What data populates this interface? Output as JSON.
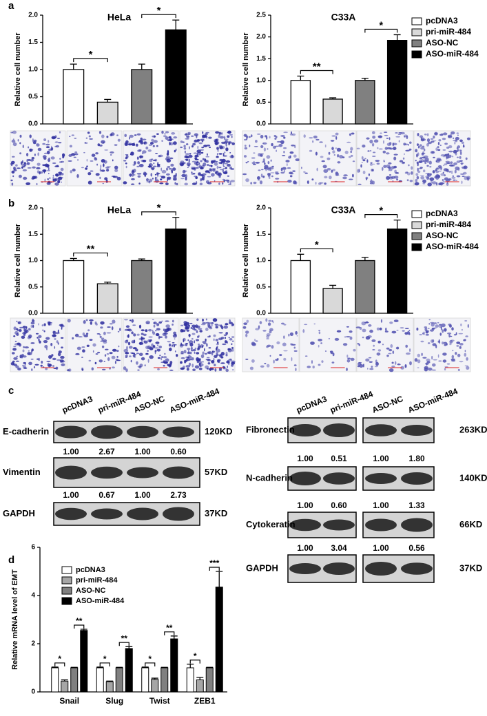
{
  "panel_labels": [
    "a",
    "b",
    "c",
    "d"
  ],
  "chart_data": [
    {
      "type": "bar",
      "title": "HeLa",
      "ylabel": "Relative cell number",
      "values": [
        1.0,
        0.4,
        1.0,
        1.73
      ],
      "errors": [
        0.1,
        0.05,
        0.1,
        0.18
      ],
      "colors": [
        "#ffffff",
        "#d9d9d9",
        "#808080",
        "#000000"
      ],
      "ylim": [
        0,
        2.0
      ],
      "yticks": [
        {
          "value": 0,
          "label": "0.0"
        },
        {
          "value": 0.5,
          "label": "0.5"
        },
        {
          "value": 1.0,
          "label": "1.0"
        },
        {
          "value": 1.5,
          "label": "1.5"
        },
        {
          "value": 2.0,
          "label": "2.0"
        }
      ],
      "annotations": [
        "*",
        "*"
      ]
    },
    {
      "type": "bar",
      "title": "C33A",
      "ylabel": "Relative cell number",
      "values": [
        1.0,
        0.57,
        1.0,
        1.92
      ],
      "errors": [
        0.1,
        0.03,
        0.05,
        0.13
      ],
      "colors": [
        "#ffffff",
        "#d9d9d9",
        "#808080",
        "#000000"
      ],
      "legend": [
        "pcDNA3",
        "pri-miR-484",
        "ASO-NC",
        "ASO-miR-484"
      ],
      "ylim": [
        0,
        2.5
      ],
      "yticks": [
        {
          "value": 0,
          "label": "0.0"
        },
        {
          "value": 0.5,
          "label": "0.5"
        },
        {
          "value": 1.0,
          "label": "1.0"
        },
        {
          "value": 1.5,
          "label": "1.5"
        },
        {
          "value": 2.0,
          "label": "2.0"
        },
        {
          "value": 2.5,
          "label": "2.5"
        }
      ],
      "annotations": [
        "**",
        "*"
      ]
    },
    {
      "type": "bar",
      "title": "HeLa",
      "ylabel": "Relative cell number",
      "values": [
        1.0,
        0.56,
        1.0,
        1.6
      ],
      "errors": [
        0.04,
        0.03,
        0.03,
        0.22
      ],
      "colors": [
        "#ffffff",
        "#d9d9d9",
        "#808080",
        "#000000"
      ],
      "ylim": [
        0,
        2.0
      ],
      "yticks": [
        {
          "value": 0,
          "label": "0.0"
        },
        {
          "value": 0.5,
          "label": "0.5"
        },
        {
          "value": 1.0,
          "label": "1.0"
        },
        {
          "value": 1.5,
          "label": "1.5"
        },
        {
          "value": 2.0,
          "label": "2.0"
        }
      ],
      "annotations": [
        "**",
        "*"
      ]
    },
    {
      "type": "bar",
      "title": "C33A",
      "ylabel": "Relative cell number",
      "values": [
        1.0,
        0.47,
        1.0,
        1.6
      ],
      "errors": [
        0.12,
        0.06,
        0.06,
        0.17
      ],
      "colors": [
        "#ffffff",
        "#d9d9d9",
        "#808080",
        "#000000"
      ],
      "legend": [
        "pcDNA3",
        "pri-miR-484",
        "ASO-NC",
        "ASO-miR-484"
      ],
      "ylim": [
        0,
        2.0
      ],
      "yticks": [
        {
          "value": 0,
          "label": "0.0"
        },
        {
          "value": 0.5,
          "label": "0.5"
        },
        {
          "value": 1.0,
          "label": "1.0"
        },
        {
          "value": 1.5,
          "label": "1.5"
        },
        {
          "value": 2.0,
          "label": "2.0"
        }
      ],
      "annotations": [
        "*",
        "*"
      ]
    },
    {
      "type": "grouped_bar",
      "ylabel": "Relative mRNA level of EMT",
      "categories": [
        "Snail",
        "Slug",
        "Twist",
        "ZEB1"
      ],
      "series": [
        {
          "name": "pcDNA3",
          "color": "#ffffff",
          "values": [
            1,
            1,
            1,
            1
          ],
          "errors": [
            0.03,
            0.03,
            0.03,
            0.15
          ]
        },
        {
          "name": "pri-miR-484",
          "color": "#a6a6a6",
          "values": [
            0.45,
            0.42,
            0.52,
            0.5
          ],
          "errors": [
            0.05,
            0.03,
            0.05,
            0.1
          ]
        },
        {
          "name": "ASO-NC",
          "color": "#808080",
          "values": [
            1,
            1,
            1,
            1
          ],
          "errors": [
            0.02,
            0.02,
            0.02,
            0.02
          ]
        },
        {
          "name": "ASO-miR-484",
          "color": "#000000",
          "values": [
            2.55,
            1.8,
            2.2,
            4.35
          ],
          "errors": [
            0.05,
            0.08,
            0.12,
            0.65
          ]
        }
      ],
      "ylim": [
        0,
        6
      ],
      "yticks": [
        0,
        2,
        4,
        6
      ],
      "annotations": [
        [
          "*",
          "**"
        ],
        [
          "*",
          "**"
        ],
        [
          "*",
          "**"
        ],
        [
          "*",
          "***"
        ]
      ]
    }
  ],
  "blots": [
    {
      "lanes": [
        "pcDNA3",
        "pri-miR-484",
        "ASO-NC",
        "ASO-miR-484"
      ],
      "rows": [
        {
          "protein": "E-cadherin",
          "size": "120KD",
          "ratios": [
            "1.00",
            "2.67",
            "1.00",
            "0.60"
          ]
        },
        {
          "protein": "Vimentin",
          "size": "57KD",
          "ratios": [
            "1.00",
            "0.67",
            "1.00",
            "2.73"
          ]
        },
        {
          "protein": "GAPDH",
          "size": "37KD"
        }
      ]
    },
    {
      "lanes": [
        "pcDNA3",
        "pri-miR-484",
        "ASO-NC",
        "ASO-miR-484"
      ],
      "rows": [
        {
          "protein": "Fibronectin",
          "size": "263KD",
          "ratios": [
            "1.00",
            "0.51",
            "1.00",
            "1.80"
          ]
        },
        {
          "protein": "N-cadherin",
          "size": "140KD",
          "ratios": [
            "1.00",
            "0.60",
            "1.00",
            "1.33"
          ]
        },
        {
          "protein": "Cytokeratin",
          "size": "66KD",
          "ratios": [
            "1.00",
            "3.04",
            "1.00",
            "0.56"
          ]
        },
        {
          "protein": "GAPDH",
          "size": "37KD"
        }
      ]
    }
  ]
}
